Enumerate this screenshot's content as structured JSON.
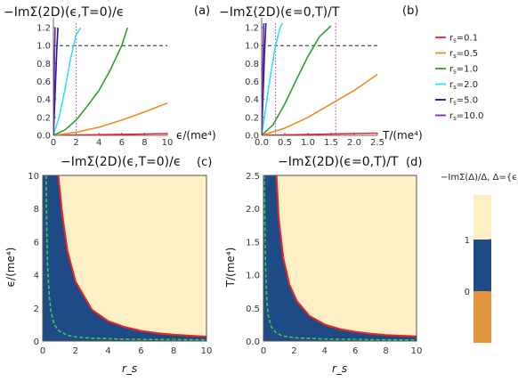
{
  "legend": {
    "entries": [
      {
        "label": "r_s=0.1",
        "color": "#e8262b"
      },
      {
        "label": "r_s=0.5",
        "color": "#f08a1c"
      },
      {
        "label": "r_s=1.0",
        "color": "#2ca02c"
      },
      {
        "label": "r_s=2.0",
        "color": "#2fe3f0"
      },
      {
        "label": "r_s=5.0",
        "color": "#1a1aa6"
      },
      {
        "label": "r_s=10.0",
        "color": "#7b2aa0"
      }
    ]
  },
  "colorbar": {
    "title": "−ImΣ(Δ)/Δ, Δ={ϵ,T}",
    "ticks": [
      "1",
      "0"
    ],
    "colors": {
      "high": "#fcf0c4",
      "mid": "#1e4a85",
      "low": "#e0953e"
    }
  },
  "chart_data": [
    {
      "id": "a",
      "type": "line",
      "panel_label": "(a)",
      "title": "−ImΣ(2D)(ϵ,T=0)/ϵ",
      "xlabel": "ϵ/(me⁴)",
      "ylabel": "",
      "xlim": [
        0,
        10
      ],
      "ylim": [
        0,
        1.25
      ],
      "xticks": [
        0,
        2,
        4,
        6,
        8,
        10
      ],
      "yticks": [
        0.0,
        0.2,
        0.4,
        0.6,
        0.8,
        1.0,
        1.2
      ],
      "reference_line_y": 1.0,
      "vertical_dotted_x": 2.0,
      "series": [
        {
          "name": "r_s=0.1",
          "x": [
            0,
            2,
            4,
            6,
            8,
            10
          ],
          "y": [
            0,
            0.003,
            0.007,
            0.011,
            0.015,
            0.02
          ]
        },
        {
          "name": "r_s=0.5",
          "x": [
            0,
            2,
            4,
            6,
            8,
            10
          ],
          "y": [
            0,
            0.035,
            0.09,
            0.17,
            0.26,
            0.36
          ]
        },
        {
          "name": "r_s=1.0",
          "x": [
            0,
            1,
            2,
            3,
            4,
            5,
            6,
            6.5
          ],
          "y": [
            0,
            0.06,
            0.17,
            0.33,
            0.5,
            0.73,
            1.0,
            1.2
          ]
        },
        {
          "name": "r_s=2.0",
          "x": [
            0,
            0.5,
            1,
            1.5,
            2,
            2.4
          ],
          "y": [
            0,
            0.2,
            0.5,
            0.85,
            1.12,
            1.2
          ]
        },
        {
          "name": "r_s=5.0",
          "x": [
            0,
            0.1,
            0.2,
            0.3,
            0.4
          ],
          "y": [
            0,
            0.3,
            0.65,
            0.95,
            1.2
          ]
        },
        {
          "name": "r_s=10.0",
          "x": [
            0,
            0.05,
            0.1,
            0.15
          ],
          "y": [
            0,
            0.45,
            0.9,
            1.2
          ]
        }
      ]
    },
    {
      "id": "b",
      "type": "line",
      "panel_label": "(b)",
      "title": "−ImΣ(2D)(ϵ=0,T)/T",
      "xlabel": "T/(me⁴)",
      "ylabel": "",
      "xlim": [
        0,
        2.5
      ],
      "ylim": [
        0,
        1.25
      ],
      "xticks": [
        0.0,
        0.5,
        1.0,
        1.5,
        2.0,
        2.5
      ],
      "yticks": [
        0.0,
        0.2,
        0.4,
        0.6,
        0.8,
        1.0,
        1.2
      ],
      "reference_line_y": 1.0,
      "vertical_dotted_x": [
        0.3,
        1.6
      ],
      "series": [
        {
          "name": "r_s=0.1",
          "x": [
            0,
            0.5,
            1.0,
            1.5,
            2.0,
            2.5
          ],
          "y": [
            0,
            0.005,
            0.01,
            0.015,
            0.02,
            0.025
          ]
        },
        {
          "name": "r_s=0.5",
          "x": [
            0,
            0.5,
            1.0,
            1.5,
            2.0,
            2.5
          ],
          "y": [
            0,
            0.08,
            0.2,
            0.35,
            0.5,
            0.68
          ]
        },
        {
          "name": "r_s=1.0",
          "x": [
            0,
            0.25,
            0.5,
            0.75,
            1.0,
            1.25,
            1.5
          ],
          "y": [
            0,
            0.12,
            0.35,
            0.62,
            0.88,
            1.1,
            1.22
          ]
        },
        {
          "name": "r_s=2.0",
          "x": [
            0,
            0.1,
            0.2,
            0.3,
            0.4,
            0.45
          ],
          "y": [
            0,
            0.35,
            0.7,
            1.0,
            1.2,
            1.25
          ]
        },
        {
          "name": "r_s=5.0",
          "x": [
            0,
            0.03,
            0.06,
            0.09
          ],
          "y": [
            0,
            0.45,
            0.9,
            1.25
          ]
        },
        {
          "name": "r_s=10.0",
          "x": [
            0,
            0.015,
            0.03,
            0.045
          ],
          "y": [
            0,
            0.45,
            0.9,
            1.25
          ]
        }
      ]
    },
    {
      "id": "c",
      "type": "heatmap",
      "panel_label": "(c)",
      "title": "−ImΣ(2D)(ϵ,T=0)/ϵ",
      "xlabel": "r_s",
      "ylabel": "ϵ/(me⁴)",
      "xlim": [
        0,
        10
      ],
      "ylim": [
        0,
        10
      ],
      "xticks": [
        0,
        2,
        4,
        6,
        8,
        10
      ],
      "yticks": [
        0,
        2,
        4,
        6,
        8,
        10
      ],
      "boundary_red": {
        "x": [
          0.95,
          1.2,
          1.5,
          2,
          3,
          4,
          5,
          6,
          7,
          8,
          9,
          10
        ],
        "y": [
          10,
          7.6,
          5.5,
          3.6,
          1.9,
          1.2,
          0.85,
          0.62,
          0.48,
          0.38,
          0.32,
          0.27
        ]
      },
      "boundary_green_dashed": {
        "x": [
          0.2,
          0.25,
          0.3,
          0.4,
          0.5,
          0.7,
          1,
          1.5,
          2,
          3,
          5,
          7,
          10
        ],
        "y": [
          10,
          6.5,
          4.5,
          2.7,
          1.8,
          1.0,
          0.6,
          0.35,
          0.25,
          0.17,
          0.11,
          0.09,
          0.07
        ]
      }
    },
    {
      "id": "d",
      "type": "heatmap",
      "panel_label": "(d)",
      "title": "−ImΣ(2D)(ϵ=0,T)/T",
      "xlabel": "r_s",
      "ylabel": "T/(me⁴)",
      "xlim": [
        0,
        10
      ],
      "ylim": [
        0,
        2.5
      ],
      "xticks": [
        0,
        2,
        4,
        6,
        8,
        10
      ],
      "yticks": [
        0.0,
        0.5,
        1.0,
        1.5,
        2.0,
        2.5
      ],
      "boundary_red": {
        "x": [
          0.85,
          1,
          1.3,
          1.7,
          2.2,
          3,
          4,
          5,
          6,
          7,
          8,
          9,
          10
        ],
        "y": [
          2.5,
          1.85,
          1.25,
          0.85,
          0.6,
          0.38,
          0.25,
          0.18,
          0.14,
          0.11,
          0.09,
          0.08,
          0.07
        ]
      },
      "boundary_green_dashed": {
        "x": [
          0.05,
          0.1,
          0.15,
          0.2,
          0.3,
          0.5,
          0.8,
          1.2,
          2,
          4,
          7,
          10
        ],
        "y": [
          2.5,
          1.6,
          1.0,
          0.7,
          0.4,
          0.22,
          0.13,
          0.08,
          0.05,
          0.03,
          0.02,
          0.015
        ]
      }
    }
  ]
}
